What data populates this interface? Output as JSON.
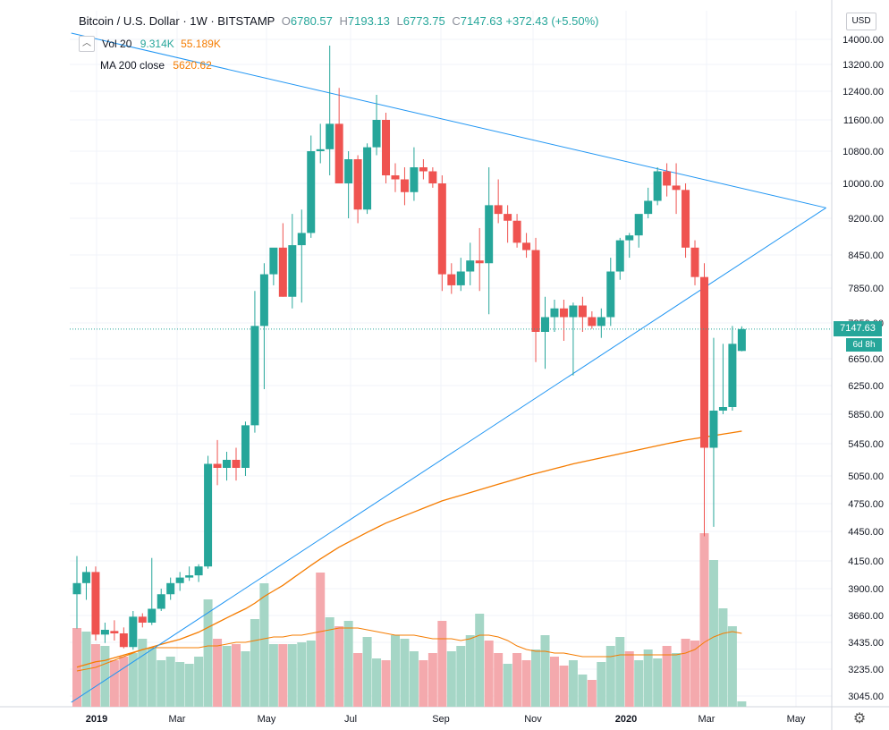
{
  "header": {
    "symbol": "Bitcoin / U.S. Dollar · 1W · BITSTAMP",
    "open_label": "O",
    "open": "6780.57",
    "high_label": "H",
    "high": "7193.13",
    "low_label": "L",
    "low": "6773.75",
    "close_label": "C",
    "close": "7147.63",
    "change": "+372.43 (+5.50%)"
  },
  "vol_legend": {
    "name": "Vol 20",
    "value1": "9.314K",
    "value2": "55.189K"
  },
  "ma_legend": {
    "name": "MA 200 close",
    "value": "5620.62"
  },
  "currency": "USD",
  "last_price_tag": "7147.63",
  "countdown_tag": "6d 8h",
  "colors": {
    "up": "#26a69a",
    "down": "#ef5350",
    "vol_up": "#a5d6c6",
    "vol_down": "#f4a9ad",
    "ma": "#f57c00",
    "trend": "#2196f3",
    "price_line": "#26a69a"
  },
  "chart_data": {
    "type": "candlestick",
    "y_ticks": [
      "14000.00",
      "13200.00",
      "12400.00",
      "11600.00",
      "10800.00",
      "10000.00",
      "9200.00",
      "8450.00",
      "7850.00",
      "7250.00",
      "6650.00",
      "6250.00",
      "5850.00",
      "5450.00",
      "5050.00",
      "4750.00",
      "4450.00",
      "4150.00",
      "3900.00",
      "3660.00",
      "3435.00",
      "3235.00",
      "3045.00"
    ],
    "x_ticks": [
      "2019",
      "Mar",
      "May",
      "Jul",
      "Sep",
      "Nov",
      "2020",
      "Mar",
      "May"
    ],
    "candles": [
      {
        "o": 3850,
        "h": 4200,
        "l": 3550,
        "c": 3950
      },
      {
        "o": 3950,
        "h": 4100,
        "l": 3800,
        "c": 4050
      },
      {
        "o": 4050,
        "h": 4100,
        "l": 3450,
        "c": 3500
      },
      {
        "o": 3500,
        "h": 3600,
        "l": 3430,
        "c": 3540
      },
      {
        "o": 3530,
        "h": 3620,
        "l": 3450,
        "c": 3510
      },
      {
        "o": 3510,
        "h": 3560,
        "l": 3390,
        "c": 3400
      },
      {
        "o": 3400,
        "h": 3700,
        "l": 3380,
        "c": 3650
      },
      {
        "o": 3650,
        "h": 3680,
        "l": 3560,
        "c": 3600
      },
      {
        "o": 3600,
        "h": 4180,
        "l": 3580,
        "c": 3720
      },
      {
        "o": 3720,
        "h": 3900,
        "l": 3700,
        "c": 3850
      },
      {
        "o": 3850,
        "h": 4000,
        "l": 3800,
        "c": 3950
      },
      {
        "o": 3950,
        "h": 4050,
        "l": 3880,
        "c": 4000
      },
      {
        "o": 4000,
        "h": 4100,
        "l": 3970,
        "c": 4020
      },
      {
        "o": 4020,
        "h": 4120,
        "l": 3960,
        "c": 4100
      },
      {
        "o": 4100,
        "h": 5300,
        "l": 4080,
        "c": 5200
      },
      {
        "o": 5200,
        "h": 5500,
        "l": 4950,
        "c": 5150
      },
      {
        "o": 5150,
        "h": 5350,
        "l": 5000,
        "c": 5250
      },
      {
        "o": 5250,
        "h": 5400,
        "l": 5000,
        "c": 5150
      },
      {
        "o": 5150,
        "h": 5750,
        "l": 5050,
        "c": 5700
      },
      {
        "o": 5700,
        "h": 7800,
        "l": 5600,
        "c": 7200
      },
      {
        "o": 7200,
        "h": 8300,
        "l": 6200,
        "c": 8100
      },
      {
        "o": 8100,
        "h": 8500,
        "l": 7900,
        "c": 8600
      },
      {
        "o": 8600,
        "h": 9100,
        "l": 7700,
        "c": 7700
      },
      {
        "o": 7700,
        "h": 9300,
        "l": 7500,
        "c": 8650
      },
      {
        "o": 8650,
        "h": 9400,
        "l": 7600,
        "c": 8900
      },
      {
        "o": 8900,
        "h": 11200,
        "l": 8800,
        "c": 10800
      },
      {
        "o": 10800,
        "h": 11500,
        "l": 10500,
        "c": 10850
      },
      {
        "o": 10850,
        "h": 13800,
        "l": 10200,
        "c": 11500
      },
      {
        "o": 11500,
        "h": 12500,
        "l": 10100,
        "c": 10000
      },
      {
        "o": 10000,
        "h": 10800,
        "l": 9200,
        "c": 10600
      },
      {
        "o": 10600,
        "h": 10700,
        "l": 9100,
        "c": 9400
      },
      {
        "o": 9400,
        "h": 11000,
        "l": 9300,
        "c": 10900
      },
      {
        "o": 10900,
        "h": 12300,
        "l": 10700,
        "c": 11600
      },
      {
        "o": 11600,
        "h": 11800,
        "l": 10000,
        "c": 10200
      },
      {
        "o": 10200,
        "h": 10500,
        "l": 9800,
        "c": 10100
      },
      {
        "o": 10100,
        "h": 10400,
        "l": 9500,
        "c": 9800
      },
      {
        "o": 9800,
        "h": 10900,
        "l": 9600,
        "c": 10400
      },
      {
        "o": 10400,
        "h": 10600,
        "l": 10100,
        "c": 10300
      },
      {
        "o": 10300,
        "h": 10400,
        "l": 9900,
        "c": 10000
      },
      {
        "o": 10000,
        "h": 10200,
        "l": 7800,
        "c": 8100
      },
      {
        "o": 8100,
        "h": 8300,
        "l": 7750,
        "c": 7900
      },
      {
        "o": 7900,
        "h": 8400,
        "l": 7800,
        "c": 8150
      },
      {
        "o": 8150,
        "h": 8700,
        "l": 7900,
        "c": 8350
      },
      {
        "o": 8350,
        "h": 9000,
        "l": 7800,
        "c": 8300
      },
      {
        "o": 8300,
        "h": 10400,
        "l": 7400,
        "c": 9500
      },
      {
        "o": 9500,
        "h": 10100,
        "l": 9100,
        "c": 9300
      },
      {
        "o": 9300,
        "h": 9500,
        "l": 8700,
        "c": 9150
      },
      {
        "o": 9150,
        "h": 9300,
        "l": 8600,
        "c": 8700
      },
      {
        "o": 8700,
        "h": 8900,
        "l": 8400,
        "c": 8550
      },
      {
        "o": 8550,
        "h": 8800,
        "l": 6600,
        "c": 7100
      },
      {
        "o": 7100,
        "h": 7700,
        "l": 6500,
        "c": 7350
      },
      {
        "o": 7350,
        "h": 7650,
        "l": 7100,
        "c": 7500
      },
      {
        "o": 7500,
        "h": 7650,
        "l": 6950,
        "c": 7350
      },
      {
        "o": 7350,
        "h": 7600,
        "l": 6400,
        "c": 7550
      },
      {
        "o": 7550,
        "h": 7700,
        "l": 7100,
        "c": 7350
      },
      {
        "o": 7350,
        "h": 7450,
        "l": 7150,
        "c": 7200
      },
      {
        "o": 7200,
        "h": 7500,
        "l": 7000,
        "c": 7350
      },
      {
        "o": 7350,
        "h": 8400,
        "l": 7200,
        "c": 8150
      },
      {
        "o": 8150,
        "h": 8800,
        "l": 8000,
        "c": 8750
      },
      {
        "o": 8750,
        "h": 8900,
        "l": 8400,
        "c": 8850
      },
      {
        "o": 8850,
        "h": 9200,
        "l": 8600,
        "c": 9300
      },
      {
        "o": 9300,
        "h": 9900,
        "l": 9200,
        "c": 9600
      },
      {
        "o": 9600,
        "h": 10400,
        "l": 9500,
        "c": 10300
      },
      {
        "o": 10300,
        "h": 10500,
        "l": 9700,
        "c": 9950
      },
      {
        "o": 9950,
        "h": 10500,
        "l": 9300,
        "c": 9850
      },
      {
        "o": 9850,
        "h": 10000,
        "l": 8400,
        "c": 8600
      },
      {
        "o": 8600,
        "h": 8750,
        "l": 7900,
        "c": 8050
      },
      {
        "o": 8050,
        "h": 8300,
        "l": 4400,
        "c": 5400
      },
      {
        "o": 5400,
        "h": 7000,
        "l": 4500,
        "c": 5900
      },
      {
        "o": 5900,
        "h": 6900,
        "l": 5850,
        "c": 5950
      },
      {
        "o": 5950,
        "h": 7200,
        "l": 5900,
        "c": 6900
      },
      {
        "o": 6780.57,
        "h": 7193.13,
        "l": 6773.75,
        "c": 7147.63
      }
    ],
    "volume": [
      {
        "v": 0.44,
        "up": false
      },
      {
        "v": 0.42,
        "up": true
      },
      {
        "v": 0.35,
        "up": false
      },
      {
        "v": 0.34,
        "up": true
      },
      {
        "v": 0.26,
        "up": false
      },
      {
        "v": 0.28,
        "up": false
      },
      {
        "v": 0.3,
        "up": true
      },
      {
        "v": 0.38,
        "up": true
      },
      {
        "v": 0.33,
        "up": true
      },
      {
        "v": 0.26,
        "up": true
      },
      {
        "v": 0.28,
        "up": true
      },
      {
        "v": 0.25,
        "up": true
      },
      {
        "v": 0.24,
        "up": true
      },
      {
        "v": 0.28,
        "up": true
      },
      {
        "v": 0.6,
        "up": true
      },
      {
        "v": 0.38,
        "up": false
      },
      {
        "v": 0.34,
        "up": true
      },
      {
        "v": 0.35,
        "up": false
      },
      {
        "v": 0.31,
        "up": true
      },
      {
        "v": 0.49,
        "up": true
      },
      {
        "v": 0.69,
        "up": true
      },
      {
        "v": 0.35,
        "up": true
      },
      {
        "v": 0.35,
        "up": false
      },
      {
        "v": 0.35,
        "up": true
      },
      {
        "v": 0.36,
        "up": true
      },
      {
        "v": 0.37,
        "up": true
      },
      {
        "v": 0.75,
        "up": false
      },
      {
        "v": 0.5,
        "up": true
      },
      {
        "v": 0.45,
        "up": false
      },
      {
        "v": 0.48,
        "up": true
      },
      {
        "v": 0.3,
        "up": false
      },
      {
        "v": 0.39,
        "up": true
      },
      {
        "v": 0.27,
        "up": true
      },
      {
        "v": 0.26,
        "up": false
      },
      {
        "v": 0.4,
        "up": true
      },
      {
        "v": 0.38,
        "up": true
      },
      {
        "v": 0.31,
        "up": true
      },
      {
        "v": 0.26,
        "up": false
      },
      {
        "v": 0.3,
        "up": false
      },
      {
        "v": 0.48,
        "up": false
      },
      {
        "v": 0.31,
        "up": true
      },
      {
        "v": 0.34,
        "up": true
      },
      {
        "v": 0.4,
        "up": true
      },
      {
        "v": 0.52,
        "up": true
      },
      {
        "v": 0.37,
        "up": false
      },
      {
        "v": 0.3,
        "up": false
      },
      {
        "v": 0.24,
        "up": true
      },
      {
        "v": 0.3,
        "up": false
      },
      {
        "v": 0.26,
        "up": false
      },
      {
        "v": 0.32,
        "up": true
      },
      {
        "v": 0.4,
        "up": true
      },
      {
        "v": 0.28,
        "up": false
      },
      {
        "v": 0.23,
        "up": false
      },
      {
        "v": 0.26,
        "up": true
      },
      {
        "v": 0.18,
        "up": true
      },
      {
        "v": 0.15,
        "up": false
      },
      {
        "v": 0.25,
        "up": true
      },
      {
        "v": 0.34,
        "up": true
      },
      {
        "v": 0.39,
        "up": true
      },
      {
        "v": 0.31,
        "up": false
      },
      {
        "v": 0.26,
        "up": true
      },
      {
        "v": 0.32,
        "up": true
      },
      {
        "v": 0.27,
        "up": true
      },
      {
        "v": 0.34,
        "up": false
      },
      {
        "v": 0.3,
        "up": true
      },
      {
        "v": 0.38,
        "up": false
      },
      {
        "v": 0.37,
        "up": false
      },
      {
        "v": 0.97,
        "up": false
      },
      {
        "v": 0.82,
        "up": true
      },
      {
        "v": 0.55,
        "up": true
      },
      {
        "v": 0.45,
        "up": true
      },
      {
        "v": 0.03,
        "up": true
      }
    ],
    "ma200": [
      3250,
      3270,
      3290,
      3300,
      3320,
      3340,
      3360,
      3380,
      3400,
      3420,
      3440,
      3460,
      3490,
      3520,
      3560,
      3600,
      3640,
      3680,
      3720,
      3770,
      3830,
      3880,
      3930,
      3990,
      4050,
      4110,
      4170,
      4230,
      4290,
      4340,
      4390,
      4440,
      4490,
      4540,
      4580,
      4620,
      4660,
      4700,
      4740,
      4780,
      4810,
      4840,
      4870,
      4900,
      4930,
      4960,
      4990,
      5020,
      5050,
      5080,
      5110,
      5140,
      5170,
      5200,
      5225,
      5250,
      5275,
      5300,
      5325,
      5350,
      5375,
      5400,
      5425,
      5450,
      5475,
      5500,
      5520,
      5540,
      5560,
      5580,
      5600,
      5620.62
    ],
    "vol_ma": [
      0.2,
      0.21,
      0.22,
      0.24,
      0.26,
      0.28,
      0.3,
      0.32,
      0.33,
      0.33,
      0.33,
      0.33,
      0.33,
      0.33,
      0.34,
      0.34,
      0.35,
      0.36,
      0.36,
      0.37,
      0.38,
      0.39,
      0.39,
      0.4,
      0.4,
      0.41,
      0.42,
      0.43,
      0.44,
      0.44,
      0.44,
      0.43,
      0.42,
      0.41,
      0.4,
      0.4,
      0.4,
      0.39,
      0.38,
      0.38,
      0.38,
      0.37,
      0.38,
      0.4,
      0.4,
      0.39,
      0.37,
      0.34,
      0.32,
      0.31,
      0.31,
      0.3,
      0.3,
      0.29,
      0.28,
      0.28,
      0.28,
      0.28,
      0.29,
      0.29,
      0.29,
      0.29,
      0.29,
      0.29,
      0.29,
      0.3,
      0.32,
      0.36,
      0.39,
      0.41,
      0.42,
      0.41
    ]
  }
}
